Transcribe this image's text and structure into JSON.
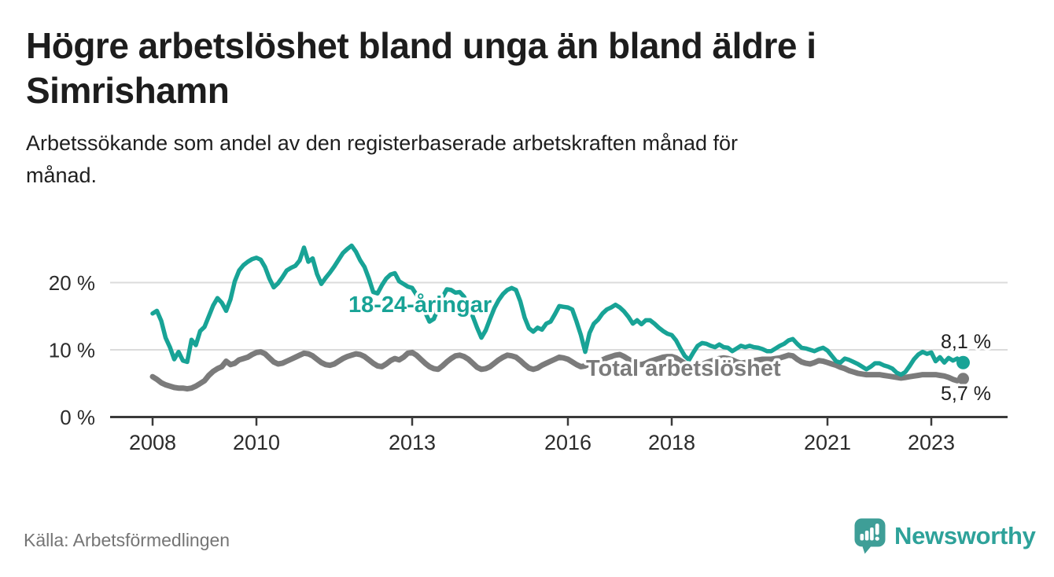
{
  "header": {
    "title": "Högre arbetslöshet bland unga än bland äldre i\nSimrishamn",
    "subtitle": "Arbetssökande som andel av den registerbaserade arbetskraften månad för\nmånad."
  },
  "footer": {
    "source": "Källa: Arbetsförmedlingen",
    "logo_text": "Newsworthy"
  },
  "colors": {
    "youth_line": "#18A396",
    "total_line": "#7B7B7B",
    "gridline": "#DBDBDB",
    "axis": "#3A3A3A",
    "tick_text": "#2B2B2B",
    "value_text": "#1D1D1D",
    "logo_teal": "#3E9E97"
  },
  "chart_data": {
    "type": "line",
    "title": "Högre arbetslöshet bland unga än bland äldre i Simrishamn",
    "subtitle": "Arbetssökande som andel av den registerbaserade arbetskraften månad för månad.",
    "source": "Källa: Arbetsförmedlingen",
    "x_start": "2008-01",
    "x_interval": "monthly",
    "x_end": "2023-08",
    "x_ticks": [
      2008,
      2010,
      2013,
      2016,
      2018,
      2021,
      2023
    ],
    "y_ticks": [
      {
        "value": 0,
        "label": "0 %"
      },
      {
        "value": 10,
        "label": "10 %"
      },
      {
        "value": 20,
        "label": "20 %"
      }
    ],
    "ylim": [
      0,
      27
    ],
    "grid": "horizontal",
    "legend_position": "inline-labels",
    "series": [
      {
        "name": "18-24-åringar",
        "color": "#18A396",
        "end_label": "8,1 %",
        "end_value": 8.1,
        "values": [
          15.4,
          15.8,
          14.3,
          11.8,
          10.4,
          8.6,
          9.7,
          8.4,
          8.2,
          11.5,
          10.7,
          12.8,
          13.4,
          15.0,
          16.6,
          17.7,
          17.0,
          15.8,
          17.5,
          20.2,
          21.8,
          22.6,
          23.1,
          23.5,
          23.7,
          23.4,
          22.3,
          20.6,
          19.3,
          19.9,
          20.8,
          21.8,
          22.2,
          22.5,
          23.3,
          25.2,
          23.1,
          23.6,
          21.3,
          19.8,
          20.7,
          21.5,
          22.4,
          23.4,
          24.4,
          25.0,
          25.5,
          24.6,
          23.3,
          22.3,
          20.6,
          18.6,
          18.4,
          19.6,
          20.6,
          21.2,
          21.4,
          20.2,
          19.8,
          19.4,
          19.2,
          18.2,
          17.1,
          15.6,
          14.2,
          14.6,
          16.2,
          17.8,
          19.0,
          18.9,
          18.5,
          18.6,
          17.9,
          16.5,
          15.0,
          13.3,
          11.8,
          12.9,
          14.6,
          16.2,
          17.4,
          18.3,
          18.9,
          19.2,
          18.9,
          17.2,
          14.8,
          13.2,
          12.7,
          13.3,
          13.0,
          13.9,
          14.2,
          15.3,
          16.5,
          16.4,
          16.3,
          16.0,
          14.2,
          12.2,
          9.7,
          12.5,
          13.9,
          14.5,
          15.4,
          16.0,
          16.3,
          16.7,
          16.3,
          15.7,
          14.9,
          13.9,
          14.4,
          13.8,
          14.4,
          14.4,
          13.9,
          13.3,
          12.8,
          12.4,
          12.2,
          11.4,
          10.2,
          9.1,
          8.5,
          9.6,
          10.6,
          11.0,
          10.9,
          10.6,
          10.4,
          10.8,
          10.4,
          10.3,
          9.8,
          10.2,
          10.6,
          10.4,
          10.6,
          10.4,
          10.3,
          10.1,
          9.8,
          9.8,
          10.2,
          10.6,
          10.9,
          11.4,
          11.6,
          10.9,
          10.3,
          10.2,
          10.0,
          9.8,
          10.1,
          10.3,
          9.9,
          9.1,
          8.3,
          8.1,
          8.7,
          8.5,
          8.2,
          7.9,
          7.5,
          7.1,
          7.5,
          8.0,
          8.0,
          7.7,
          7.5,
          7.2,
          6.6,
          6.3,
          6.7,
          7.6,
          8.6,
          9.3,
          9.7,
          9.4,
          9.6,
          8.3,
          8.9,
          8.1,
          8.8,
          8.4,
          8.7,
          8.1
        ]
      },
      {
        "name": "Total arbetslöshet",
        "color": "#7B7B7B",
        "end_label": "5,7 %",
        "end_value": 5.7,
        "values": [
          6.0,
          5.6,
          5.1,
          4.8,
          4.6,
          4.4,
          4.3,
          4.3,
          4.2,
          4.3,
          4.6,
          5.0,
          5.4,
          6.2,
          6.8,
          7.2,
          7.5,
          8.3,
          7.8,
          8.0,
          8.5,
          8.7,
          8.9,
          9.3,
          9.6,
          9.7,
          9.4,
          8.8,
          8.2,
          7.9,
          8.0,
          8.3,
          8.6,
          8.9,
          9.2,
          9.5,
          9.4,
          9.1,
          8.6,
          8.1,
          7.8,
          7.7,
          7.9,
          8.3,
          8.7,
          9.0,
          9.2,
          9.4,
          9.3,
          9.0,
          8.5,
          8.0,
          7.6,
          7.5,
          7.9,
          8.4,
          8.7,
          8.5,
          8.9,
          9.5,
          9.6,
          9.2,
          8.6,
          8.0,
          7.5,
          7.2,
          7.1,
          7.6,
          8.2,
          8.7,
          9.1,
          9.2,
          9.0,
          8.6,
          8.0,
          7.4,
          7.1,
          7.2,
          7.5,
          8.0,
          8.5,
          8.9,
          9.2,
          9.1,
          8.9,
          8.4,
          7.8,
          7.3,
          7.1,
          7.3,
          7.7,
          8.0,
          8.3,
          8.6,
          8.9,
          8.8,
          8.6,
          8.2,
          7.8,
          7.5,
          7.6,
          7.9,
          8.1,
          8.3,
          8.5,
          8.8,
          9.0,
          9.2,
          9.3,
          9.0,
          8.6,
          8.2,
          7.9,
          7.8,
          8.0,
          8.3,
          8.5,
          8.7,
          8.9,
          9.0,
          9.0,
          8.8,
          8.4,
          8.0,
          7.7,
          7.5,
          7.6,
          7.8,
          8.1,
          8.3,
          8.5,
          8.7,
          8.8,
          8.7,
          8.5,
          8.2,
          8.0,
          8.1,
          8.2,
          8.4,
          8.5,
          8.6,
          8.6,
          8.6,
          8.7,
          8.8,
          9.0,
          9.2,
          9.1,
          8.6,
          8.2,
          8.0,
          7.9,
          8.1,
          8.4,
          8.3,
          8.1,
          7.9,
          7.7,
          7.4,
          7.2,
          6.9,
          6.7,
          6.5,
          6.4,
          6.3,
          6.3,
          6.3,
          6.3,
          6.2,
          6.1,
          6.0,
          5.9,
          5.8,
          5.9,
          6.0,
          6.1,
          6.2,
          6.3,
          6.3,
          6.3,
          6.3,
          6.2,
          6.1,
          5.9,
          5.6,
          5.4,
          5.7
        ]
      }
    ]
  }
}
